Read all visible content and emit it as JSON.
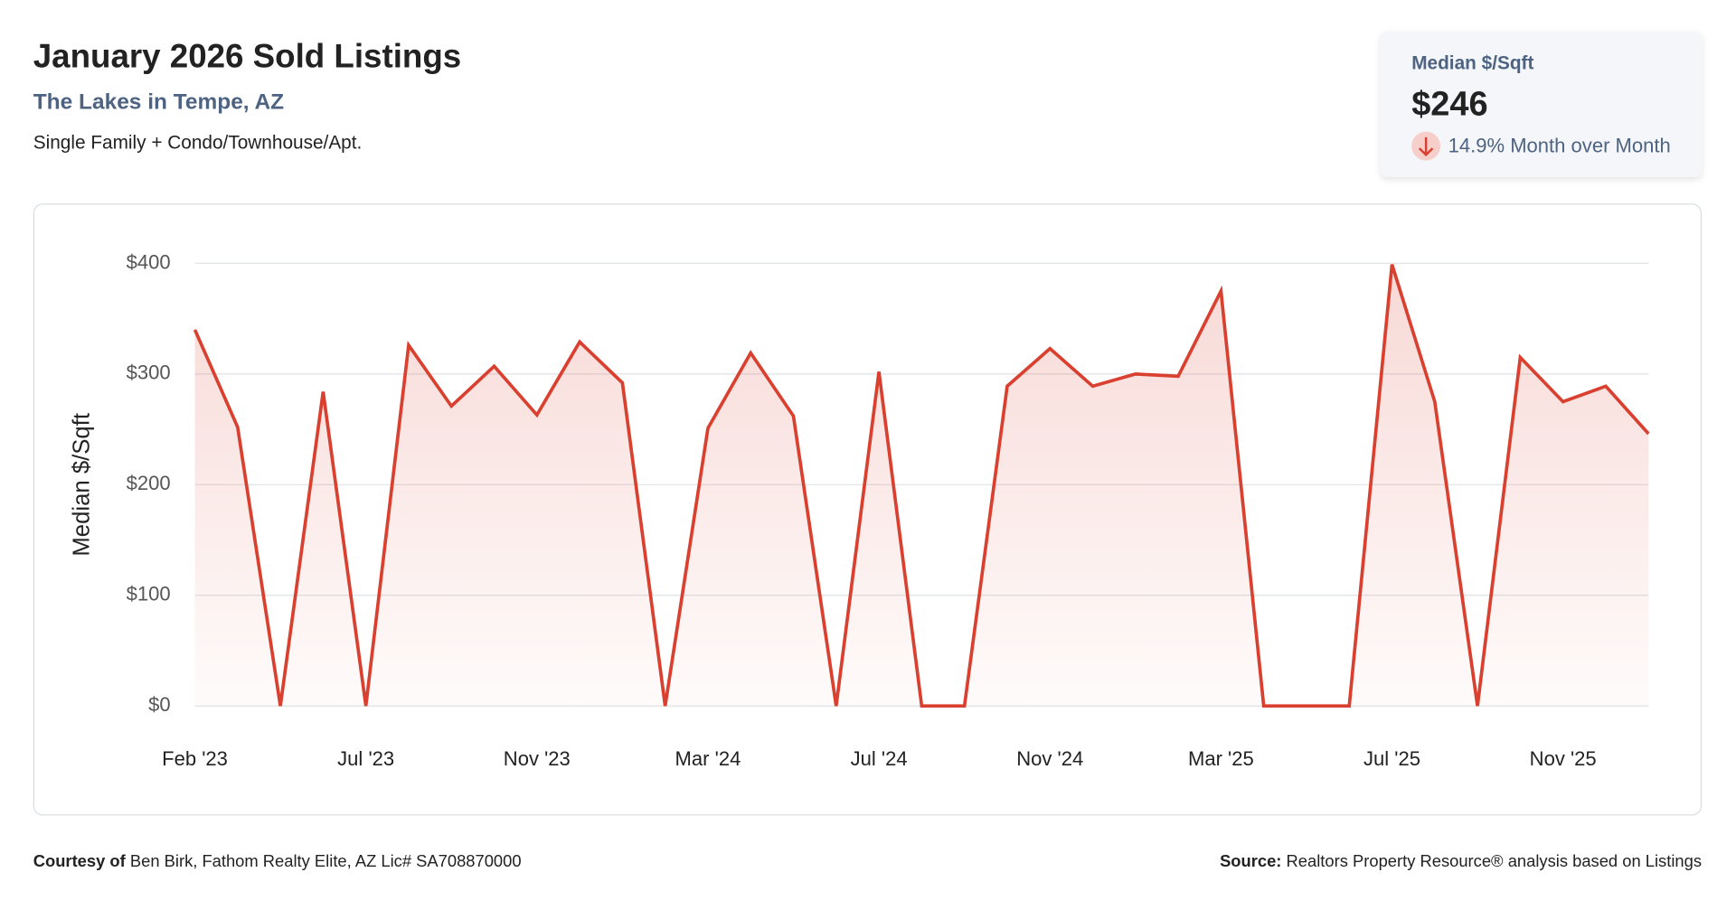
{
  "header": {
    "title": "January 2026 Sold Listings",
    "subtitle": "The Lakes in Tempe, AZ",
    "description": "Single Family + Condo/Townhouse/Apt."
  },
  "kpi": {
    "label": "Median $/Sqft",
    "value": "$246",
    "change": "14.9% Month over Month"
  },
  "chart_data": {
    "type": "line",
    "y_label": "Median $/Sqft",
    "color": "#d9402f",
    "grid": true,
    "area": true,
    "categories": [
      "Feb '23",
      null,
      null,
      null,
      "Jul '23",
      null,
      null,
      null,
      "Nov '23",
      null,
      null,
      null,
      "Mar '24",
      null,
      null,
      null,
      "Jul '24",
      null,
      null,
      null,
      "Nov '24",
      null,
      null,
      null,
      "Mar '25",
      null,
      null,
      null,
      "Jul '25",
      null,
      null,
      null,
      "Nov '25",
      null,
      null
    ],
    "values": [
      340,
      252,
      0,
      284,
      0,
      326,
      271,
      307,
      263,
      329,
      292,
      0,
      251,
      319,
      262,
      0,
      302,
      0,
      0,
      289,
      323,
      289,
      300,
      298,
      375,
      0,
      0,
      0,
      399,
      275,
      0,
      315,
      275,
      289,
      246
    ],
    "ylim": [
      0,
      400
    ],
    "yticks": [
      {
        "value": 0,
        "label": "$0"
      },
      {
        "value": 100,
        "label": "$100"
      },
      {
        "value": 200,
        "label": "$200"
      },
      {
        "value": 300,
        "label": "$300"
      },
      {
        "value": 400,
        "label": "$400"
      }
    ]
  },
  "footer": {
    "courtesy_label": "Courtesy of",
    "courtesy": "Ben Birk, Fathom Realty Elite, AZ Lic# SA708870000",
    "source_label": "Source:",
    "source": "Realtors Property Resource® analysis based on Listings"
  }
}
